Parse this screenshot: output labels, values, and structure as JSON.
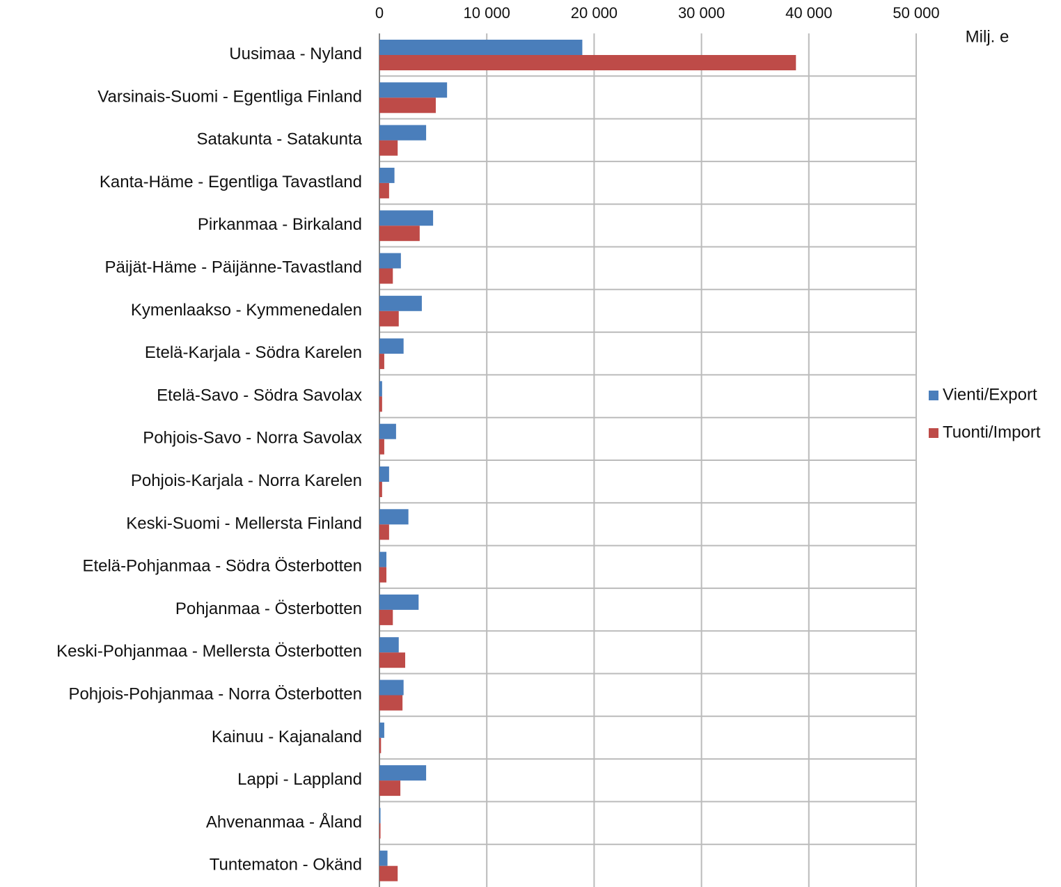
{
  "chart_data": {
    "type": "bar",
    "orientation": "horizontal",
    "x_label": "Milj. e",
    "categories": [
      "Uusimaa - Nyland",
      "Varsinais-Suomi - Egentliga Finland",
      "Satakunta - Satakunta",
      "Kanta-Häme - Egentliga Tavastland",
      "Pirkanmaa - Birkaland",
      "Päijät-Häme - Päijänne-Tavastland",
      "Kymenlaakso - Kymmenedalen",
      "Etelä-Karjala - Södra Karelen",
      "Etelä-Savo - Södra Savolax",
      "Pohjois-Savo - Norra Savolax",
      "Pohjois-Karjala - Norra Karelen",
      "Keski-Suomi - Mellersta Finland",
      "Etelä-Pohjanmaa - Södra Österbotten",
      "Pohjanmaa - Österbotten",
      "Keski-Pohjanmaa - Mellersta Österbotten",
      "Pohjois-Pohjanmaa - Norra Österbotten",
      "Kainuu - Kajanaland",
      "Lappi - Lappland",
      "Ahvenanmaa - Åland",
      "Tuntematon - Okänd"
    ],
    "series": [
      {
        "name": "Vienti/Export",
        "color": "#4a7ebb",
        "values": [
          18900,
          6300,
          4350,
          1400,
          5000,
          2000,
          3950,
          2250,
          250,
          1550,
          900,
          2700,
          650,
          3650,
          1800,
          2250,
          450,
          4350,
          100,
          750
        ]
      },
      {
        "name": "Tuonti/Import",
        "color": "#be4b48",
        "values": [
          38800,
          5250,
          1700,
          900,
          3750,
          1250,
          1800,
          450,
          250,
          450,
          250,
          900,
          650,
          1250,
          2400,
          2150,
          150,
          1950,
          100,
          1700
        ]
      }
    ],
    "xlim": [
      0,
      50000
    ],
    "xticks": [
      0,
      {
        "value": 10000,
        "label": "10 000"
      },
      {
        "value": 20000,
        "label": "20 000"
      },
      {
        "value": 30000,
        "label": "30 000"
      },
      {
        "value": 40000,
        "label": "40 000"
      },
      {
        "value": 50000,
        "label": "50 000"
      }
    ],
    "grid": true,
    "legend": "right"
  }
}
